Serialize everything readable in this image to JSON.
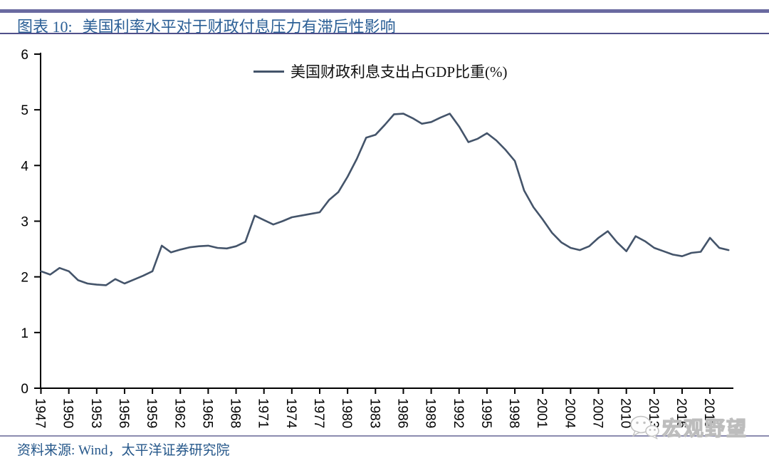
{
  "header": {
    "figure_label": "图表 10:",
    "figure_title": "美国利率水平对于财政付息压力有滞后性影响"
  },
  "source": {
    "text": "资料来源: Wind，太平洋证券研究院"
  },
  "watermark": {
    "icon": "wechat-icon",
    "text": "宏观野望"
  },
  "theme": {
    "line_color": "#44546A",
    "title_color": "#2B5F96",
    "top_bar_color": "#6A6AA0",
    "divider_color": "#8C8CB0",
    "axis_color": "#000000"
  },
  "chart_data": {
    "type": "line",
    "title": "",
    "xlabel": "",
    "ylabel": "",
    "legend": [
      "美国财政利息支出占GDP比重(%)"
    ],
    "legend_position": "top-center",
    "grid": false,
    "ylim": [
      0,
      6
    ],
    "ytick_interval": 1,
    "xtick_labels": [
      "1947",
      "1950",
      "1953",
      "1956",
      "1959",
      "1962",
      "1965",
      "1968",
      "1971",
      "1974",
      "1977",
      "1980",
      "1983",
      "1986",
      "1989",
      "1992",
      "1995",
      "1998",
      "2001",
      "2004",
      "2007",
      "2010",
      "2013",
      "2016",
      "2019"
    ],
    "x": [
      1947,
      1948,
      1949,
      1950,
      1951,
      1952,
      1953,
      1954,
      1955,
      1956,
      1957,
      1958,
      1959,
      1960,
      1961,
      1962,
      1963,
      1964,
      1965,
      1966,
      1967,
      1968,
      1969,
      1970,
      1971,
      1972,
      1973,
      1974,
      1975,
      1976,
      1977,
      1978,
      1979,
      1980,
      1981,
      1982,
      1983,
      1984,
      1985,
      1986,
      1987,
      1988,
      1989,
      1990,
      1991,
      1992,
      1993,
      1994,
      1995,
      1996,
      1997,
      1998,
      1999,
      2000,
      2001,
      2002,
      2003,
      2004,
      2005,
      2006,
      2007,
      2008,
      2009,
      2010,
      2011,
      2012,
      2013,
      2014,
      2015,
      2016,
      2017,
      2018,
      2019,
      2020,
      2021
    ],
    "series": [
      {
        "name": "美国财政利息支出占GDP比重(%)",
        "color": "#44546A",
        "values": [
          2.1,
          2.04,
          2.16,
          2.1,
          1.94,
          1.88,
          1.86,
          1.85,
          1.96,
          1.88,
          1.95,
          2.02,
          2.1,
          2.56,
          2.44,
          2.49,
          2.53,
          2.55,
          2.56,
          2.52,
          2.51,
          2.55,
          2.63,
          3.1,
          3.02,
          2.94,
          3.0,
          3.07,
          3.1,
          3.13,
          3.16,
          3.38,
          3.52,
          3.8,
          4.12,
          4.5,
          4.55,
          4.73,
          4.92,
          4.93,
          4.85,
          4.75,
          4.78,
          4.86,
          4.93,
          4.7,
          4.42,
          4.48,
          4.58,
          4.45,
          4.28,
          4.08,
          3.55,
          3.25,
          3.03,
          2.79,
          2.62,
          2.52,
          2.48,
          2.55,
          2.7,
          2.82,
          2.62,
          2.46,
          2.73,
          2.64,
          2.52,
          2.46,
          2.4,
          2.37,
          2.43,
          2.45,
          2.7,
          2.52,
          2.48
        ]
      }
    ]
  }
}
